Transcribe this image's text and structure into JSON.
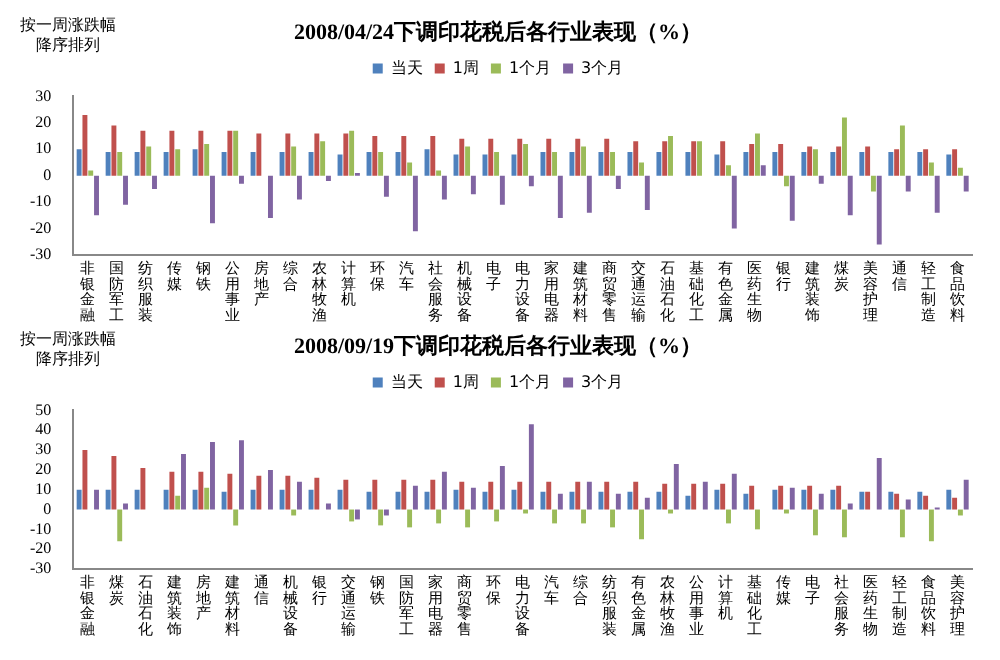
{
  "chart_data": [
    {
      "type": "bar",
      "title": "2008/04/24下调印花税后各行业表现（%）",
      "annotations": [
        "按一周涨跌幅",
        "降序排列"
      ],
      "categories": [
        "非银金融",
        "国防军工",
        "纺织服装",
        "传媒",
        "钢铁",
        "公用事业",
        "房地产",
        "综合",
        "农林牧渔",
        "计算机",
        "环保",
        "汽车",
        "社会服务",
        "机械设备",
        "电子",
        "电力设备",
        "家用电器",
        "建筑材料",
        "商贸零售",
        "交通运输",
        "石油石化",
        "基础化工",
        "有色金属",
        "医药生物",
        "银行",
        "建筑装饰",
        "煤炭",
        "美容护理",
        "通信",
        "轻工制造",
        "食品饮料"
      ],
      "series": [
        {
          "name": "当天",
          "color": "#4f81bd",
          "values": [
            10,
            9,
            9,
            9,
            10,
            9,
            9,
            9,
            9,
            8,
            9,
            9,
            10,
            8,
            8,
            8,
            9,
            9,
            9,
            9,
            9,
            9,
            8,
            9,
            9,
            9,
            9,
            9,
            9,
            9,
            8
          ]
        },
        {
          "name": "1周",
          "color": "#c0504d",
          "values": [
            23,
            19,
            17,
            17,
            17,
            17,
            16,
            16,
            16,
            16,
            15,
            15,
            15,
            14,
            14,
            14,
            14,
            14,
            14,
            13,
            13,
            13,
            13,
            12,
            12,
            11,
            11,
            11,
            10,
            10,
            10
          ]
        },
        {
          "name": "1个月",
          "color": "#9bbb59",
          "values": [
            2,
            9,
            11,
            10,
            12,
            17,
            0,
            11,
            13,
            17,
            9,
            5,
            2,
            11,
            9,
            12,
            9,
            11,
            9,
            5,
            15,
            13,
            4,
            16,
            -4,
            10,
            22,
            -6,
            19,
            5,
            3
          ]
        },
        {
          "name": "3个月",
          "color": "#8064a2",
          "values": [
            -15,
            -11,
            -5,
            0,
            -18,
            -3,
            -16,
            -9,
            -2,
            1,
            -8,
            -21,
            -9,
            -7,
            -11,
            -4,
            -16,
            -14,
            -5,
            -13,
            0,
            0,
            -20,
            4,
            -17,
            -3,
            -15,
            -26,
            -6,
            -14,
            -6
          ]
        }
      ],
      "ylim": [
        -30,
        30
      ],
      "yticks": [
        -30,
        -20,
        -10,
        0,
        10,
        20,
        30
      ],
      "grid": false,
      "legend": "top"
    },
    {
      "type": "bar",
      "title": "2008/09/19下调印花税后各行业表现（%）",
      "annotations": [
        "按一周涨跌幅",
        "降序排列"
      ],
      "categories": [
        "非银金融",
        "煤炭",
        "石油石化",
        "建筑装饰",
        "房地产",
        "建筑材料",
        "通信",
        "机械设备",
        "银行",
        "交通运输",
        "钢铁",
        "国防军工",
        "家用电器",
        "商贸零售",
        "环保",
        "电力设备",
        "汽车",
        "综合",
        "纺织服装",
        "有色金属",
        "农林牧渔",
        "公用事业",
        "计算机",
        "基础化工",
        "传媒",
        "电子",
        "社会服务",
        "医药生物",
        "轻工制造",
        "食品饮料",
        "美容护理"
      ],
      "series": [
        {
          "name": "当天",
          "color": "#4f81bd",
          "values": [
            10,
            10,
            10,
            10,
            10,
            9,
            10,
            10,
            10,
            10,
            9,
            9,
            9,
            10,
            9,
            10,
            9,
            9,
            9,
            9,
            9,
            7,
            10,
            8,
            10,
            10,
            10,
            9,
            9,
            9,
            10
          ]
        },
        {
          "name": "1周",
          "color": "#c0504d",
          "values": [
            30,
            27,
            21,
            19,
            19,
            18,
            17,
            17,
            16,
            15,
            15,
            15,
            15,
            14,
            14,
            14,
            14,
            14,
            14,
            14,
            13,
            13,
            13,
            12,
            12,
            12,
            12,
            9,
            8,
            7,
            6
          ]
        },
        {
          "name": "1个月",
          "color": "#9bbb59",
          "values": [
            0,
            -16,
            0,
            7,
            11,
            -8,
            0,
            -3,
            0,
            -6,
            -8,
            -9,
            -7,
            -9,
            -6,
            -2,
            -7,
            -7,
            -9,
            -15,
            -2,
            0,
            -7,
            -10,
            -2,
            -13,
            -14,
            0,
            -14,
            -16,
            -3
          ]
        },
        {
          "name": "3个月",
          "color": "#8064a2",
          "values": [
            10,
            3,
            0,
            28,
            34,
            35,
            20,
            14,
            3,
            -5,
            -3,
            12,
            19,
            11,
            22,
            43,
            8,
            14,
            8,
            6,
            23,
            14,
            18,
            0,
            11,
            8,
            3,
            26,
            5,
            1,
            15
          ]
        }
      ],
      "ylim": [
        -30,
        50
      ],
      "yticks": [
        -30,
        -20,
        -10,
        0,
        10,
        20,
        30,
        40,
        50
      ],
      "grid": false,
      "legend": "top"
    }
  ]
}
